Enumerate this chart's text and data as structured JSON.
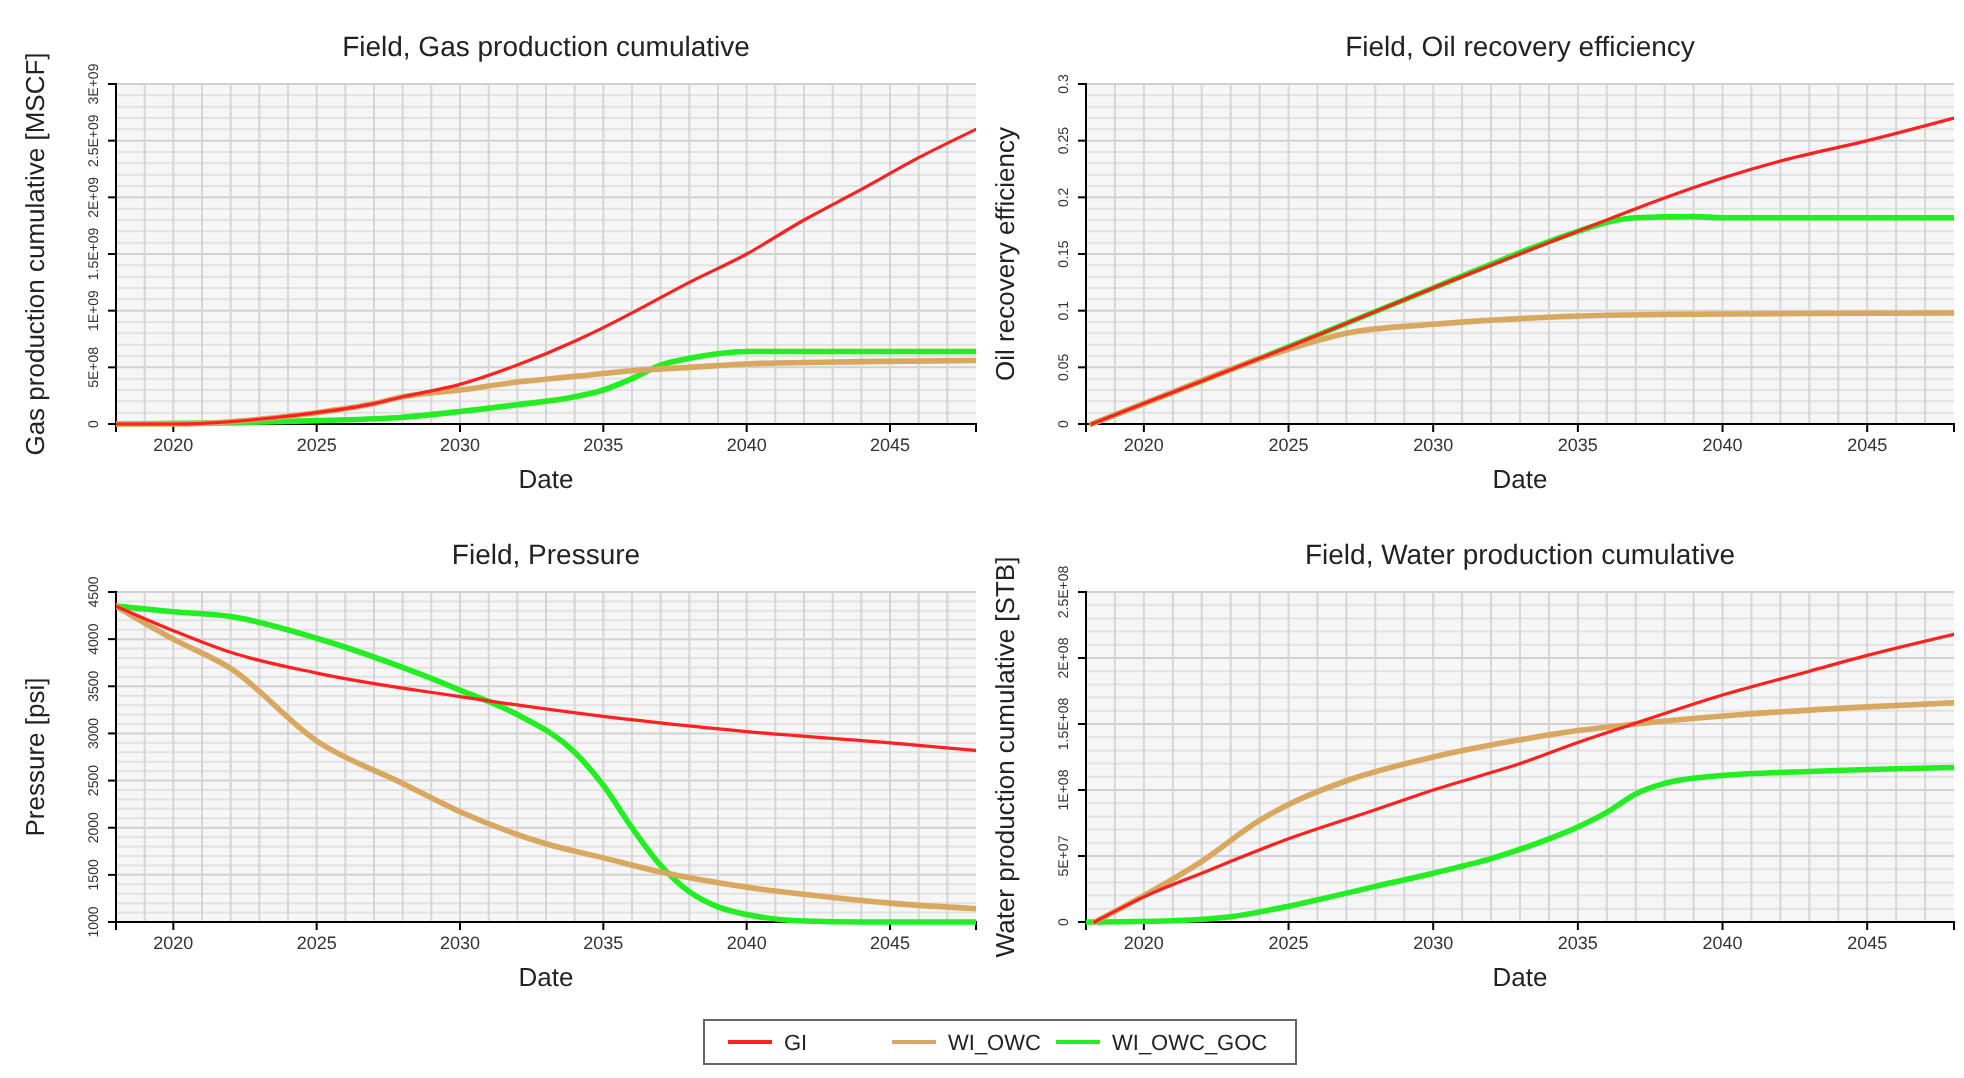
{
  "chart_data": [
    {
      "type": "line",
      "title": "Field, Gas production cumulative",
      "xlabel": "Date",
      "ylabel": "Gas production cumulative [MSCF]",
      "xlim": [
        2018,
        2048
      ],
      "xticks": [
        2020,
        2025,
        2030,
        2035,
        2040,
        2045
      ],
      "ylim": [
        0,
        3000000000
      ],
      "yticks": [
        {
          "value": 0,
          "label": "0"
        },
        {
          "value": 500000000,
          "label": "5E+08"
        },
        {
          "value": 1000000000,
          "label": "1E+09"
        },
        {
          "value": 1500000000,
          "label": "1.5E+09"
        },
        {
          "value": 2000000000,
          "label": "2E+09"
        },
        {
          "value": 2500000000,
          "label": "2.5E+09"
        },
        {
          "value": 3000000000,
          "label": "3E+09"
        }
      ],
      "grid": true,
      "legend": "bottom",
      "series": [
        {
          "name": "GI",
          "color": "#ff2020",
          "x": [
            2018,
            2020,
            2022,
            2024,
            2025,
            2027,
            2028,
            2030,
            2032,
            2034,
            2035,
            2036,
            2038,
            2040,
            2042,
            2044,
            2046,
            2048
          ],
          "values": [
            0,
            0,
            20000000,
            70000000,
            100000000,
            180000000,
            240000000,
            350000000,
            520000000,
            730000000,
            850000000,
            980000000,
            1250000000,
            1500000000,
            1800000000,
            2070000000,
            2350000000,
            2600000000
          ]
        },
        {
          "name": "WI_OWC",
          "color": "#d9a860",
          "x": [
            2018,
            2020,
            2022,
            2024,
            2025,
            2027,
            2028,
            2030,
            2032,
            2034,
            2036,
            2038,
            2040,
            2044,
            2048
          ],
          "values": [
            0,
            0,
            20000000,
            70000000,
            100000000,
            180000000,
            240000000,
            300000000,
            370000000,
            420000000,
            470000000,
            500000000,
            530000000,
            550000000,
            560000000
          ]
        },
        {
          "name": "WI_OWC_GOC",
          "color": "#22ee22",
          "x": [
            2018,
            2022,
            2025,
            2028,
            2030,
            2032,
            2034,
            2035,
            2036,
            2037,
            2038,
            2039,
            2040,
            2044,
            2048
          ],
          "values": [
            0,
            10000000,
            30000000,
            60000000,
            110000000,
            170000000,
            240000000,
            300000000,
            400000000,
            520000000,
            580000000,
            620000000,
            640000000,
            640000000,
            640000000
          ]
        }
      ]
    },
    {
      "type": "line",
      "title": "Field, Oil recovery efficiency",
      "xlabel": "Date",
      "ylabel": "Oil recovery efficiency",
      "xlim": [
        2018,
        2048
      ],
      "xticks": [
        2020,
        2025,
        2030,
        2035,
        2040,
        2045
      ],
      "ylim": [
        0,
        0.3
      ],
      "yticks": [
        0,
        0.05,
        0.1,
        0.15,
        0.2,
        0.25,
        0.3
      ],
      "grid": true,
      "legend": "bottom",
      "series": [
        {
          "name": "GI",
          "color": "#ff2020",
          "x": [
            2018.2,
            2020,
            2025,
            2030,
            2035,
            2037,
            2040,
            2042,
            2045,
            2048
          ],
          "values": [
            0,
            0.018,
            0.068,
            0.12,
            0.17,
            0.19,
            0.217,
            0.232,
            0.25,
            0.27
          ]
        },
        {
          "name": "WI_OWC",
          "color": "#d9a860",
          "x": [
            2018.2,
            2020,
            2025,
            2027,
            2030,
            2033,
            2036,
            2040,
            2048
          ],
          "values": [
            0,
            0.018,
            0.066,
            0.08,
            0.088,
            0.093,
            0.096,
            0.097,
            0.098
          ]
        },
        {
          "name": "WI_OWC_GOC",
          "color": "#22ee22",
          "x": [
            2018.2,
            2020,
            2025,
            2030,
            2035,
            2036,
            2037,
            2039,
            2040,
            2048
          ],
          "values": [
            0,
            0.018,
            0.068,
            0.12,
            0.17,
            0.178,
            0.182,
            0.183,
            0.182,
            0.182
          ]
        }
      ]
    },
    {
      "type": "line",
      "title": "Field, Pressure",
      "xlabel": "Date",
      "ylabel": "Pressure [psi]",
      "xlim": [
        2018,
        2048
      ],
      "xticks": [
        2020,
        2025,
        2030,
        2035,
        2040,
        2045
      ],
      "ylim": [
        1000,
        4500
      ],
      "yticks": [
        1000,
        1500,
        2000,
        2500,
        3000,
        3500,
        4000,
        4500
      ],
      "grid": true,
      "legend": "bottom",
      "series": [
        {
          "name": "GI",
          "color": "#ff2020",
          "x": [
            2018,
            2020,
            2022,
            2025,
            2030,
            2035,
            2040,
            2045,
            2048
          ],
          "values": [
            4350,
            4090,
            3860,
            3640,
            3390,
            3180,
            3020,
            2900,
            2820
          ]
        },
        {
          "name": "WI_OWC",
          "color": "#d9a860",
          "x": [
            2018,
            2020,
            2022,
            2025,
            2028,
            2030,
            2033,
            2035,
            2037,
            2040,
            2043,
            2045,
            2048
          ],
          "values": [
            4350,
            4000,
            3690,
            2920,
            2470,
            2170,
            1830,
            1680,
            1530,
            1370,
            1260,
            1200,
            1140
          ]
        },
        {
          "name": "WI_OWC_GOC",
          "color": "#22ee22",
          "x": [
            2018,
            2020,
            2022,
            2025,
            2028,
            2030,
            2032,
            2034,
            2035,
            2036,
            2037,
            2038,
            2039,
            2040,
            2042,
            2044,
            2048
          ],
          "values": [
            4350,
            4290,
            4240,
            4010,
            3700,
            3460,
            3200,
            2800,
            2450,
            2000,
            1600,
            1320,
            1160,
            1080,
            1010,
            1000,
            1000
          ]
        }
      ]
    },
    {
      "type": "line",
      "title": "Field, Water production cumulative",
      "xlabel": "Date",
      "ylabel": "Water production cumulative [STB]",
      "xlim": [
        2018,
        2048
      ],
      "xticks": [
        2020,
        2025,
        2030,
        2035,
        2040,
        2045
      ],
      "ylim": [
        0,
        250000000
      ],
      "yticks": [
        {
          "value": 0,
          "label": "0"
        },
        {
          "value": 50000000,
          "label": "5E+07"
        },
        {
          "value": 100000000,
          "label": "1E+08"
        },
        {
          "value": 150000000,
          "label": "1.5E+08"
        },
        {
          "value": 200000000,
          "label": "2E+08"
        },
        {
          "value": 250000000,
          "label": "2.5E+08"
        }
      ],
      "grid": true,
      "legend": "bottom",
      "series": [
        {
          "name": "GI",
          "color": "#ff2020",
          "x": [
            2018.3,
            2020,
            2022,
            2025,
            2028,
            2030,
            2033,
            2035,
            2036.5,
            2040,
            2043,
            2045,
            2048
          ],
          "values": [
            0,
            19000000,
            37000000,
            63000000,
            85000000,
            100000000,
            120000000,
            136000000,
            147000000,
            172000000,
            190000000,
            202000000,
            218000000
          ]
        },
        {
          "name": "WI_OWC",
          "color": "#d9a860",
          "x": [
            2018.3,
            2020,
            2022,
            2024,
            2025,
            2027,
            2030,
            2033,
            2035,
            2037,
            2040,
            2045,
            2048
          ],
          "values": [
            0,
            20000000,
            46000000,
            77000000,
            89000000,
            107000000,
            125000000,
            138000000,
            145000000,
            150000000,
            156000000,
            163000000,
            166000000
          ]
        },
        {
          "name": "WI_OWC_GOC",
          "color": "#22ee22",
          "x": [
            2018,
            2021,
            2023,
            2025,
            2028,
            2030,
            2032,
            2034,
            2035,
            2036,
            2037,
            2038,
            2040,
            2043,
            2048
          ],
          "values": [
            0,
            1000000,
            4000000,
            12000000,
            27000000,
            37000000,
            48000000,
            63000000,
            72000000,
            83000000,
            97000000,
            105000000,
            111000000,
            114000000,
            117000000
          ]
        }
      ]
    }
  ]
}
